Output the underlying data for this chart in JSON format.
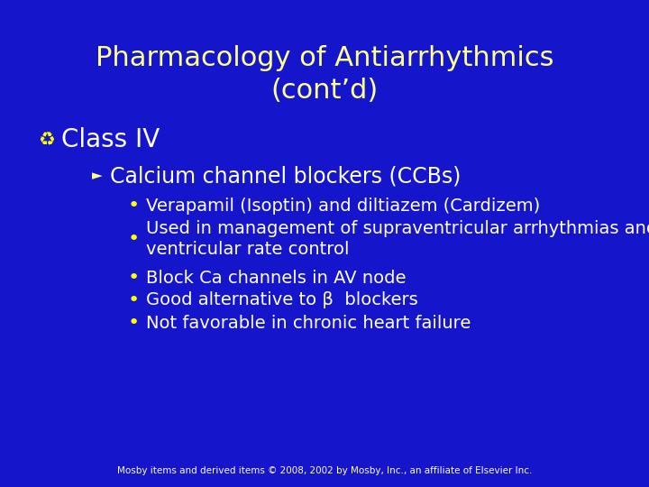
{
  "background_color": "#1515cc",
  "title_line1": "Pharmacology of Antiarrhythmics",
  "title_line2": "(cont’d)",
  "title_color": "#ffff88",
  "title_fontsize": 22,
  "class_label": "Class IV",
  "class_color": "#ffffff",
  "class_fontsize": 20,
  "class_bullet": "♻",
  "class_bullet_color": "#ffff00",
  "subhead": "Calcium channel blockers (CCBs)",
  "subhead_color": "#ffffff",
  "subhead_fontsize": 17,
  "subhead_arrow": "►",
  "subhead_arrow_color": "#ffff88",
  "bullets": [
    "Verapamil (Isoptin) and diltiazem (Cardizem)",
    "Used in management of supraventricular arrhythmias and\nventricular rate control",
    "Block Ca channels in AV node",
    "Good alternative to β  blockers",
    "Not favorable in chronic heart failure"
  ],
  "bullet_symbol": "•",
  "bullet_color": "#ffffff",
  "bullet_dot_color": "#ffff00",
  "bullet_fontsize": 14,
  "footer": "Mosby items and derived items © 2008, 2002 by Mosby, Inc., an affiliate of Elsevier Inc.",
  "footer_color": "#ffffff",
  "footer_fontsize": 7.5
}
